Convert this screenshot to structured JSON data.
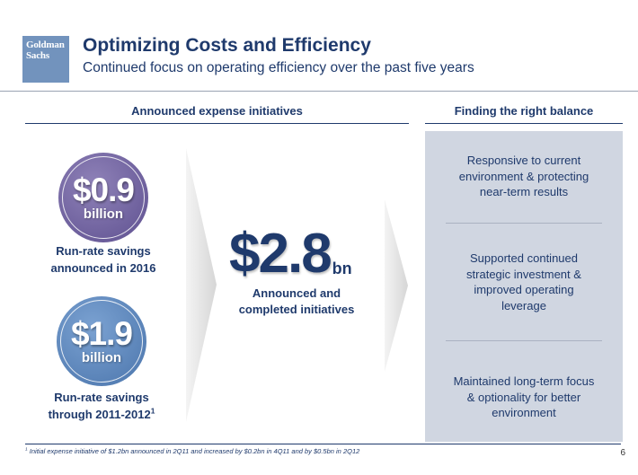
{
  "logo": {
    "line1": "Goldman",
    "line2": "Sachs"
  },
  "header": {
    "title": "Optimizing Costs and Efficiency",
    "subtitle": "Continued focus on operating efficiency over the past five years"
  },
  "left_section": {
    "heading": "Announced expense initiatives",
    "circle1": {
      "amount": "$0.9",
      "unit": "billion",
      "caption_line1": "Run-rate savings",
      "caption_line2": "announced in 2016"
    },
    "circle2": {
      "amount": "$1.9",
      "unit": "billion",
      "caption_line1": "Run-rate savings",
      "caption_line2": "through 2011-2012",
      "caption_sup": "1"
    },
    "total": {
      "amount": "$2.8",
      "unit": "bn",
      "caption_line1": "Announced and",
      "caption_line2": "completed initiatives"
    }
  },
  "right_section": {
    "heading": "Finding the right balance",
    "items": [
      {
        "line1": "Responsive to current",
        "line2": "environment & protecting",
        "line3": "near-term results"
      },
      {
        "line1": "Supported continued",
        "line2": "strategic investment &",
        "line3": "improved operating",
        "line4": "leverage"
      },
      {
        "line1": "Maintained long-term focus",
        "line2": "& optionality for better",
        "line3": "environment"
      }
    ]
  },
  "footer": {
    "footnote_sup": "1",
    "footnote": "Initial expense initiative of $1.2bn announced in 2Q11 and increased by $0.2bn in 4Q11 and by $0.5bn in 2Q12",
    "page_number": "6"
  },
  "colors": {
    "navy": "#1f3a6c",
    "purple": "#6f62a1",
    "blue": "#5b83b8",
    "panel": "#d0d6e1",
    "logo": "#7293bd"
  }
}
